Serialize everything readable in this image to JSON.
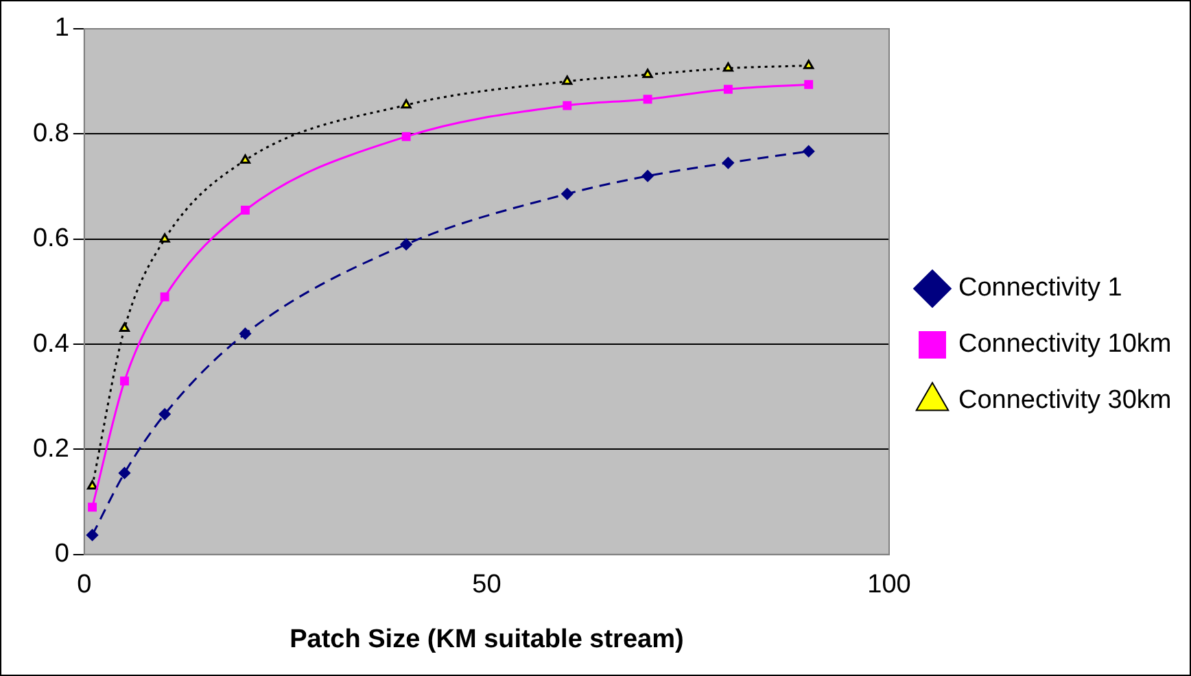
{
  "chart_data": {
    "type": "line",
    "xlabel": "Patch Size (KM suitable stream)",
    "x": [
      1,
      5,
      10,
      20,
      40,
      60,
      70,
      80,
      90
    ],
    "series": [
      {
        "name": "Connectivity 1",
        "color": "#000080",
        "marker": "diamond",
        "line_style": "dashed",
        "values": [
          0.037,
          0.155,
          0.267,
          0.42,
          0.59,
          0.686,
          0.72,
          0.745,
          0.767
        ]
      },
      {
        "name": "Connectivity 10km",
        "color": "#ff00ff",
        "marker": "square",
        "line_style": "solid",
        "values": [
          0.09,
          0.33,
          0.49,
          0.655,
          0.795,
          0.854,
          0.866,
          0.885,
          0.894
        ]
      },
      {
        "name": "Connectivity 30km",
        "color": "#000000",
        "marker": "triangle",
        "line_style": "dotted",
        "values": [
          0.13,
          0.43,
          0.6,
          0.75,
          0.855,
          0.9,
          0.913,
          0.925,
          0.93
        ]
      }
    ],
    "xlim": [
      0,
      100
    ],
    "xticks": [
      0,
      50,
      100
    ],
    "ylim": [
      0,
      1
    ],
    "yticks": [
      0,
      0.2,
      0.4,
      0.6,
      0.8,
      1
    ],
    "grid": "y",
    "legend": "right"
  }
}
